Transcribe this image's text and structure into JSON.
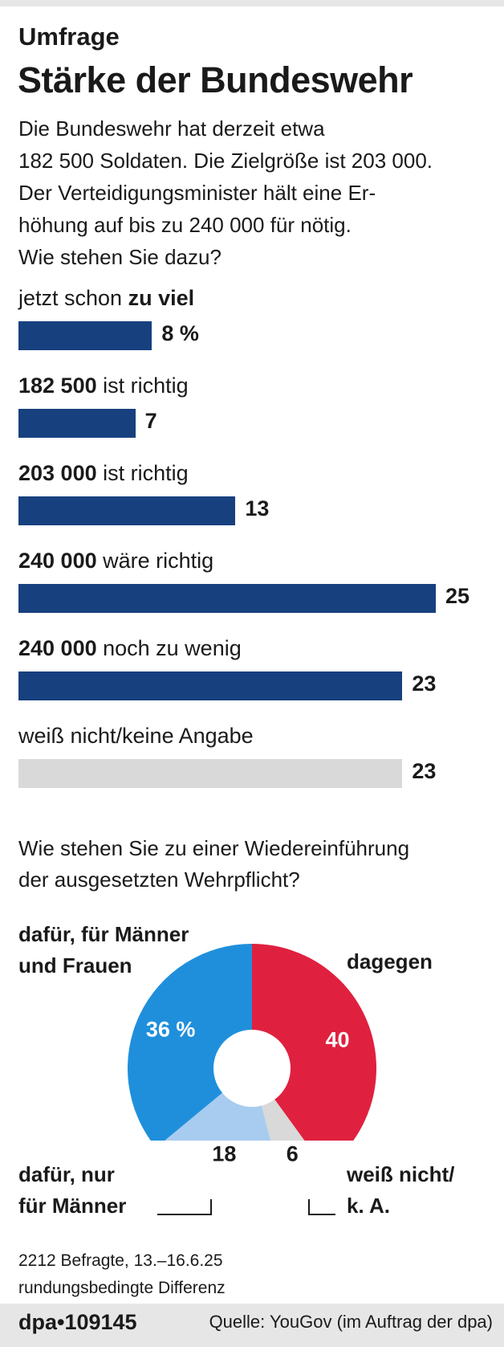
{
  "kicker": "Umfrage",
  "title": "Stärke der Bundeswehr",
  "intro": [
    "Die Bundeswehr hat derzeit etwa",
    "182 500 Soldaten. Die Zielgröße ist 203 000.",
    "Der Verteidigungsminister hält eine Er-",
    "höhung auf bis zu 240 000 für nötig.",
    "Wie stehen Sie dazu?"
  ],
  "colors": {
    "bar_main": "#17407f",
    "bar_neutral": "#d9d9d9",
    "pie_against": "#e0203f",
    "pie_for_all": "#1f8fdc",
    "pie_for_men": "#a8ccef",
    "pie_unknown": "#d9d9d9"
  },
  "chart_data": [
    {
      "type": "bar",
      "orientation": "horizontal",
      "categories": [
        "jetzt schon zu viel",
        "182 500 ist richtig",
        "203 000 ist richtig",
        "240 000 wäre richtig",
        "240 000 noch zu wenig",
        "weiß nicht/keine Angabe"
      ],
      "labels": [
        {
          "plain_before": "jetzt schon ",
          "bold": "zu viel",
          "plain_after": ""
        },
        {
          "plain_before": "",
          "bold": "182 500",
          "plain_after": " ist richtig"
        },
        {
          "plain_before": "",
          "bold": "203 000",
          "plain_after": " ist richtig"
        },
        {
          "plain_before": "",
          "bold": "240 000",
          "plain_after": " wäre richtig"
        },
        {
          "plain_before": "",
          "bold": "240 000",
          "plain_after": " noch zu wenig"
        },
        {
          "plain_before": "weiß nicht/keine Angabe",
          "bold": "",
          "plain_after": ""
        }
      ],
      "values": [
        8,
        7,
        13,
        25,
        23,
        23
      ],
      "value_labels": [
        "8 %",
        "7",
        "13",
        "25",
        "23",
        "23"
      ],
      "unit": "%",
      "highlight": [
        true,
        true,
        true,
        true,
        true,
        false
      ]
    },
    {
      "type": "pie",
      "question": [
        "Wie stehen Sie zu einer Wiedereinführung",
        "der ausgesetzten Wehrpflicht?"
      ],
      "slices": [
        {
          "label_lines": [
            "dagegen"
          ],
          "value": 40,
          "value_label": "40",
          "color": "#e0203f"
        },
        {
          "label_lines": [
            "weiß nicht/",
            "k. A."
          ],
          "value": 6,
          "value_label": "6",
          "color": "#d9d9d9"
        },
        {
          "label_lines": [
            "dafür, nur",
            "für Männer"
          ],
          "value": 18,
          "value_label": "18",
          "color": "#a8ccef"
        },
        {
          "label_lines": [
            "dafür, für Männer",
            "und Frauen"
          ],
          "value": 36,
          "value_label": "36 %",
          "color": "#1f8fdc"
        }
      ],
      "unit": "%",
      "donut": true
    }
  ],
  "notes": [
    "2212 Befragte, 13.–16.6.25",
    "rundungsbedingte Differenz"
  ],
  "footer": {
    "id": "dpa•109145",
    "source": "Quelle: YouGov (im Auftrag der dpa)"
  }
}
